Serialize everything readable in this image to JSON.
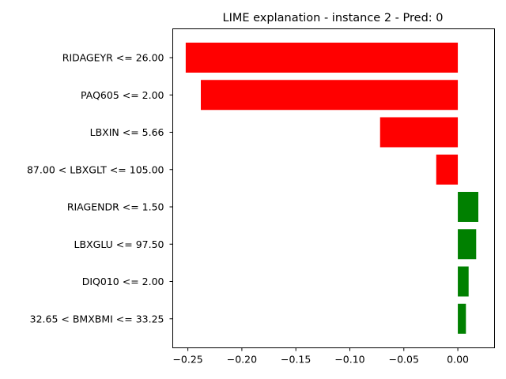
{
  "chart_data": {
    "type": "bar",
    "orientation": "horizontal",
    "title": "LIME explanation - instance 2 - Pred: 0",
    "xlabel": "",
    "ylabel": "",
    "xlim": [
      -0.264,
      0.034
    ],
    "xticks": [
      -0.25,
      -0.2,
      -0.15,
      -0.1,
      -0.05,
      0.0
    ],
    "xtick_labels": [
      "−0.25",
      "−0.20",
      "−0.15",
      "−0.10",
      "−0.05",
      "0.00"
    ],
    "grid": false,
    "legend": "none",
    "positive_color": "#008000",
    "negative_color": "#ff0000",
    "categories": [
      "RIDAGEYR <= 26.00",
      "PAQ605 <= 2.00",
      "LBXIN <= 5.66",
      "87.00 < LBXGLT <= 105.00",
      "RIAGENDR <= 1.50",
      "LBXGLU <= 97.50",
      "DIQ010 <= 2.00",
      "32.65 < BMXBMI <= 33.25"
    ],
    "values": [
      -0.252,
      -0.238,
      -0.072,
      -0.02,
      0.019,
      0.017,
      0.01,
      0.0075
    ]
  }
}
